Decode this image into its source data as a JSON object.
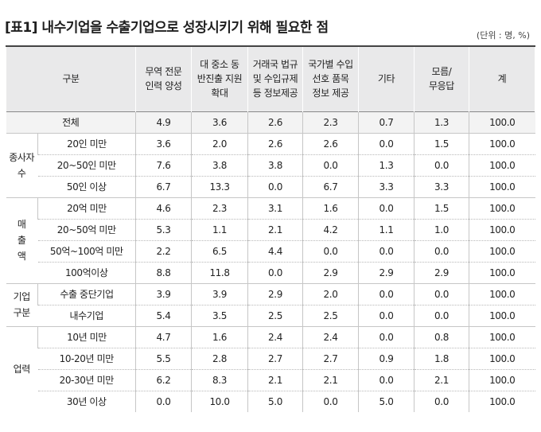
{
  "title": "[표1] 내수기업을 수출기업으로 성장시키기 위해 필요한 점",
  "unit": "(단위 : 명, %)",
  "header": {
    "category": "구분",
    "columns": [
      [
        "무역 전문",
        "인력 양성"
      ],
      [
        "대 중소 동",
        "반진출 지원",
        "확대"
      ],
      [
        "거래국 법규",
        "및 수입규제",
        "등 정보제공"
      ],
      [
        "국가별 수입",
        "선호 품목",
        "정보 제공"
      ],
      [
        "기타"
      ],
      [
        "모름/",
        "무응답"
      ],
      [
        "계"
      ]
    ]
  },
  "total_row": {
    "label": "전체",
    "values": [
      "4.9",
      "3.6",
      "2.6",
      "2.3",
      "0.7",
      "1.3",
      "100.0"
    ]
  },
  "groups": [
    {
      "label_lines": [
        "종사자",
        "수"
      ],
      "rows": [
        {
          "label": "20인 미만",
          "values": [
            "3.6",
            "2.0",
            "2.6",
            "2.6",
            "0.0",
            "1.5",
            "100.0"
          ]
        },
        {
          "label": "20~50인 미만",
          "values": [
            "7.6",
            "3.8",
            "3.8",
            "0.0",
            "1.3",
            "0.0",
            "100.0"
          ]
        },
        {
          "label": "50인 이상",
          "values": [
            "6.7",
            "13.3",
            "0.0",
            "6.7",
            "3.3",
            "3.3",
            "100.0"
          ]
        }
      ]
    },
    {
      "label_lines": [
        "매",
        "출",
        "액"
      ],
      "rows": [
        {
          "label": "20억 미만",
          "values": [
            "4.6",
            "2.3",
            "3.1",
            "1.6",
            "0.0",
            "1.5",
            "100.0"
          ]
        },
        {
          "label": "20~50억 미만",
          "values": [
            "5.3",
            "1.1",
            "2.1",
            "4.2",
            "1.1",
            "1.0",
            "100.0"
          ]
        },
        {
          "label": "50억~100억 미만",
          "values": [
            "2.2",
            "6.5",
            "4.4",
            "0.0",
            "0.0",
            "0.0",
            "100.0"
          ]
        },
        {
          "label": "100억이상",
          "values": [
            "8.8",
            "11.8",
            "0.0",
            "2.9",
            "2.9",
            "2.9",
            "100.0"
          ]
        }
      ]
    },
    {
      "label_lines": [
        "기업",
        "구분"
      ],
      "rows": [
        {
          "label": "수출 중단기업",
          "values": [
            "3.9",
            "3.9",
            "2.9",
            "2.0",
            "0.0",
            "0.0",
            "100.0"
          ]
        },
        {
          "label": "내수기업",
          "values": [
            "5.4",
            "3.5",
            "2.5",
            "2.5",
            "0.0",
            "0.0",
            "100.0"
          ]
        }
      ]
    },
    {
      "label_lines": [
        "업력"
      ],
      "rows": [
        {
          "label": "10년 미만",
          "values": [
            "4.7",
            "1.6",
            "2.4",
            "2.4",
            "0.0",
            "0.8",
            "100.0"
          ]
        },
        {
          "label": "10-20년 미만",
          "values": [
            "5.5",
            "2.8",
            "2.7",
            "2.7",
            "0.9",
            "1.8",
            "100.0"
          ]
        },
        {
          "label": "20-30년 미만",
          "values": [
            "6.2",
            "8.3",
            "2.1",
            "2.1",
            "0.0",
            "2.1",
            "100.0"
          ]
        },
        {
          "label": "30년 이상",
          "values": [
            "0.0",
            "10.0",
            "5.0",
            "0.0",
            "5.0",
            "0.0",
            "100.0"
          ]
        }
      ]
    }
  ]
}
